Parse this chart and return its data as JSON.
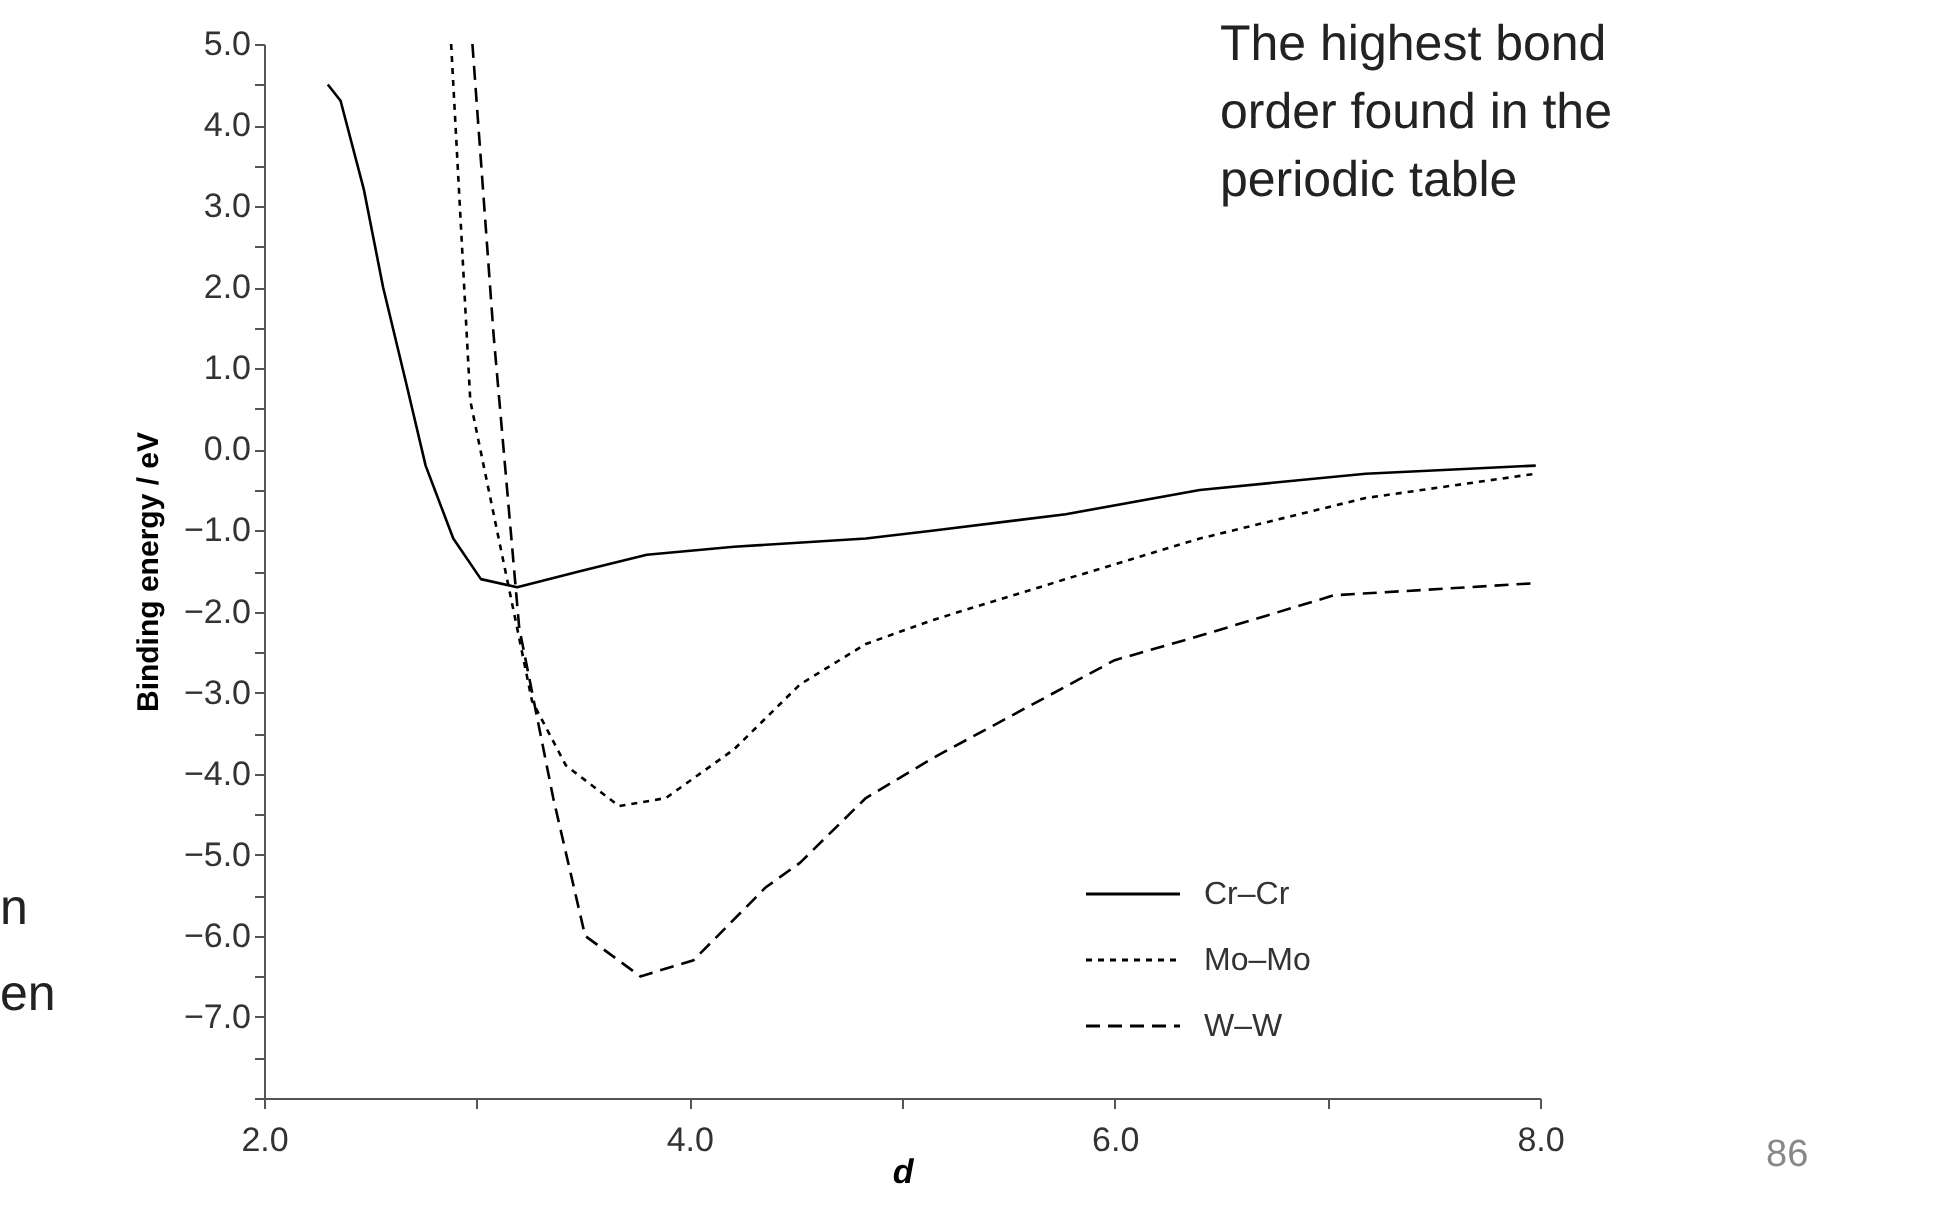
{
  "chart_data": {
    "type": "line",
    "xlabel": "d",
    "ylabel": "Binding energy / eV",
    "xlim": [
      2,
      8
    ],
    "ylim": [
      -8,
      5
    ],
    "xticks": [
      {
        "value": 2,
        "label": "2.0"
      },
      {
        "value": 3,
        "label": null
      },
      {
        "value": 4,
        "label": "4.0"
      },
      {
        "value": 5,
        "label": null
      },
      {
        "value": 6,
        "label": "6.0"
      },
      {
        "value": 7,
        "label": null
      },
      {
        "value": 8,
        "label": "8.0"
      }
    ],
    "yticks": [
      {
        "value": 5,
        "label": "5.0"
      },
      {
        "value": 4.5,
        "label": null
      },
      {
        "value": 4,
        "label": "4.0"
      },
      {
        "value": 3.5,
        "label": null
      },
      {
        "value": 3,
        "label": "3.0"
      },
      {
        "value": 2.5,
        "label": null
      },
      {
        "value": 2,
        "label": "2.0"
      },
      {
        "value": 1.5,
        "label": null
      },
      {
        "value": 1,
        "label": "1.0"
      },
      {
        "value": 0.5,
        "label": null
      },
      {
        "value": 0,
        "label": "0.0"
      },
      {
        "value": -0.5,
        "label": null
      },
      {
        "value": -1,
        "label": "−1.0"
      },
      {
        "value": -1.5,
        "label": null
      },
      {
        "value": -2,
        "label": "−2.0"
      },
      {
        "value": -2.5,
        "label": null
      },
      {
        "value": -3,
        "label": "−3.0"
      },
      {
        "value": -3.5,
        "label": null
      },
      {
        "value": -4,
        "label": "−4.0"
      },
      {
        "value": -4.5,
        "label": null
      },
      {
        "value": -5,
        "label": "−5.0"
      },
      {
        "value": -5.5,
        "label": null
      },
      {
        "value": -6,
        "label": "−6.0"
      },
      {
        "value": -6.5,
        "label": null
      },
      {
        "value": -7,
        "label": "−7.0"
      },
      {
        "value": -7.5,
        "label": null
      },
      {
        "value": -8,
        "label": null
      }
    ],
    "grid": false,
    "legend": "bottom right",
    "marker": "none",
    "series": [
      {
        "name": "Cr–Cr",
        "color": "#000000",
        "line_style": "solid",
        "x": [
          2.3,
          2.36,
          2.47,
          2.56,
          2.67,
          2.76,
          2.89,
          3.02,
          3.19,
          3.49,
          3.8,
          4.21,
          4.83,
          5.15,
          5.77,
          6.4,
          7.18,
          7.98
        ],
        "values": [
          4.5,
          4.3,
          3.2,
          2.0,
          0.8,
          -0.2,
          -1.1,
          -1.6,
          -1.7,
          -1.5,
          -1.3,
          -1.2,
          -1.1,
          -1.0,
          -0.8,
          -0.5,
          -0.3,
          -0.2
        ]
      },
      {
        "name": "Mo–Mo",
        "color": "#000000",
        "line_style": "dotted",
        "x": [
          2.88,
          2.97,
          3.19,
          3.26,
          3.42,
          3.67,
          3.89,
          4.21,
          4.52,
          4.83,
          5.15,
          5.77,
          6.4,
          7.18,
          7.98
        ],
        "values": [
          5.0,
          0.6,
          -2.2,
          -3.1,
          -3.9,
          -4.4,
          -4.3,
          -3.7,
          -2.9,
          -2.4,
          -2.1,
          -1.6,
          -1.1,
          -0.6,
          -0.3
        ]
      },
      {
        "name": "W–W",
        "color": "#000000",
        "line_style": "dashed",
        "x": [
          2.98,
          3.08,
          3.2,
          3.36,
          3.51,
          3.77,
          4.02,
          4.36,
          4.52,
          4.83,
          5.15,
          6.0,
          6.4,
          7.03,
          7.98
        ],
        "values": [
          5.0,
          1.4,
          -2.2,
          -4.3,
          -6.0,
          -6.5,
          -6.3,
          -5.4,
          -5.1,
          -4.3,
          -3.8,
          -2.6,
          -2.3,
          -1.8,
          -1.65
        ]
      }
    ],
    "annotations": [
      "The highest bond\norder found in the\nperiodic table",
      "n",
      "en",
      "86"
    ]
  }
}
